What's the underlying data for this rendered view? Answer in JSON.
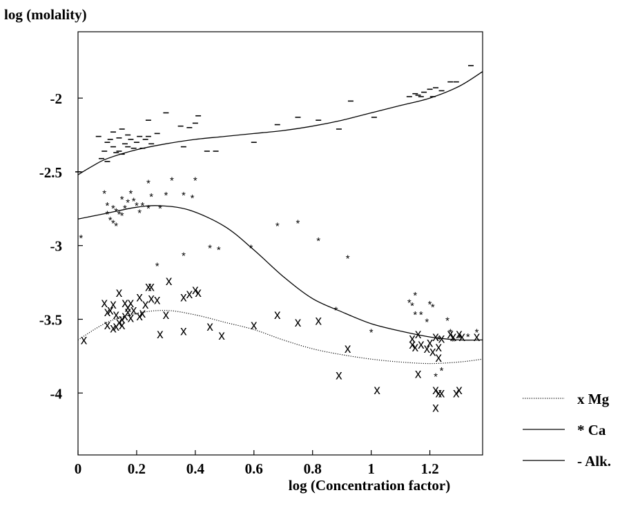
{
  "chart_data": {
    "type": "scatter",
    "ylabel": "log (molality)",
    "xlabel": "log (Concentration factor)",
    "xlim": [
      0,
      1.38
    ],
    "ylim": [
      -4.42,
      -1.55
    ],
    "xticks": [
      "0",
      "0.2",
      "0.4",
      "0.6",
      "0.8",
      "1",
      "1.2"
    ],
    "xtick_values": [
      0,
      0.2,
      0.4,
      0.6,
      0.8,
      1.0,
      1.2
    ],
    "yticks": [
      "-2",
      "-2.5",
      "-3",
      "-3.5",
      "-4"
    ],
    "ytick_values": [
      -2,
      -2.5,
      -3,
      -3.5,
      -4
    ],
    "grid": false,
    "legend_position": "bottom-right, outside plot",
    "series": [
      {
        "name": "x Mg",
        "marker": "x",
        "line_style": "dotted",
        "curve": [
          [
            0,
            -3.64
          ],
          [
            0.1,
            -3.52
          ],
          [
            0.2,
            -3.46
          ],
          [
            0.3,
            -3.44
          ],
          [
            0.4,
            -3.47
          ],
          [
            0.5,
            -3.52
          ],
          [
            0.6,
            -3.57
          ],
          [
            0.7,
            -3.64
          ],
          [
            0.8,
            -3.7
          ],
          [
            0.9,
            -3.74
          ],
          [
            1.0,
            -3.77
          ],
          [
            1.1,
            -3.79
          ],
          [
            1.2,
            -3.8
          ],
          [
            1.3,
            -3.79
          ],
          [
            1.38,
            -3.77
          ]
        ],
        "points": [
          [
            0.02,
            -3.64
          ],
          [
            0.09,
            -3.39
          ],
          [
            0.1,
            -3.45
          ],
          [
            0.1,
            -3.54
          ],
          [
            0.11,
            -3.44
          ],
          [
            0.12,
            -3.56
          ],
          [
            0.12,
            -3.4
          ],
          [
            0.13,
            -3.55
          ],
          [
            0.13,
            -3.47
          ],
          [
            0.14,
            -3.32
          ],
          [
            0.14,
            -3.52
          ],
          [
            0.15,
            -3.5
          ],
          [
            0.15,
            -3.54
          ],
          [
            0.16,
            -3.39
          ],
          [
            0.16,
            -3.48
          ],
          [
            0.17,
            -3.45
          ],
          [
            0.17,
            -3.42
          ],
          [
            0.18,
            -3.39
          ],
          [
            0.18,
            -3.49
          ],
          [
            0.19,
            -3.44
          ],
          [
            0.21,
            -3.35
          ],
          [
            0.21,
            -3.48
          ],
          [
            0.22,
            -3.46
          ],
          [
            0.23,
            -3.4
          ],
          [
            0.24,
            -3.28
          ],
          [
            0.25,
            -3.28
          ],
          [
            0.25,
            -3.36
          ],
          [
            0.27,
            -3.37
          ],
          [
            0.28,
            -3.6
          ],
          [
            0.3,
            -3.47
          ],
          [
            0.31,
            -3.24
          ],
          [
            0.36,
            -3.58
          ],
          [
            0.36,
            -3.35
          ],
          [
            0.38,
            -3.33
          ],
          [
            0.4,
            -3.3
          ],
          [
            0.41,
            -3.32
          ],
          [
            0.45,
            -3.55
          ],
          [
            0.49,
            -3.61
          ],
          [
            0.6,
            -3.54
          ],
          [
            0.68,
            -3.47
          ],
          [
            0.75,
            -3.52
          ],
          [
            0.82,
            -3.51
          ],
          [
            0.89,
            -3.88
          ],
          [
            0.92,
            -3.7
          ],
          [
            1.02,
            -3.98
          ],
          [
            1.14,
            -3.63
          ],
          [
            1.14,
            -3.67
          ],
          [
            1.15,
            -3.69
          ],
          [
            1.16,
            -3.6
          ],
          [
            1.16,
            -3.87
          ],
          [
            1.17,
            -3.67
          ],
          [
            1.19,
            -3.7
          ],
          [
            1.2,
            -3.66
          ],
          [
            1.21,
            -3.72
          ],
          [
            1.22,
            -3.62
          ],
          [
            1.22,
            -4.1
          ],
          [
            1.22,
            -3.98
          ],
          [
            1.23,
            -4.0
          ],
          [
            1.23,
            -3.76
          ],
          [
            1.23,
            -3.69
          ],
          [
            1.24,
            -3.63
          ],
          [
            1.24,
            -4.0
          ],
          [
            1.27,
            -3.6
          ],
          [
            1.28,
            -3.62
          ],
          [
            1.29,
            -4.0
          ],
          [
            1.3,
            -3.98
          ],
          [
            1.3,
            -3.6
          ],
          [
            1.31,
            -3.62
          ],
          [
            1.36,
            -3.62
          ]
        ]
      },
      {
        "name": "* Ca",
        "marker": "*",
        "line_style": "solid",
        "curve": [
          [
            0,
            -2.82
          ],
          [
            0.1,
            -2.78
          ],
          [
            0.2,
            -2.74
          ],
          [
            0.28,
            -2.73
          ],
          [
            0.38,
            -2.76
          ],
          [
            0.5,
            -2.87
          ],
          [
            0.6,
            -3.03
          ],
          [
            0.7,
            -3.21
          ],
          [
            0.8,
            -3.36
          ],
          [
            0.9,
            -3.45
          ],
          [
            1.0,
            -3.53
          ],
          [
            1.1,
            -3.58
          ],
          [
            1.2,
            -3.62
          ],
          [
            1.3,
            -3.64
          ],
          [
            1.38,
            -3.64
          ]
        ],
        "points": [
          [
            0.01,
            -2.93
          ],
          [
            0.09,
            -2.63
          ],
          [
            0.1,
            -2.71
          ],
          [
            0.1,
            -2.77
          ],
          [
            0.11,
            -2.81
          ],
          [
            0.12,
            -2.73
          ],
          [
            0.12,
            -2.83
          ],
          [
            0.13,
            -2.85
          ],
          [
            0.13,
            -2.75
          ],
          [
            0.14,
            -2.77
          ],
          [
            0.15,
            -2.78
          ],
          [
            0.15,
            -2.67
          ],
          [
            0.16,
            -2.73
          ],
          [
            0.17,
            -2.69
          ],
          [
            0.18,
            -2.63
          ],
          [
            0.19,
            -2.68
          ],
          [
            0.2,
            -2.71
          ],
          [
            0.21,
            -2.76
          ],
          [
            0.22,
            -2.71
          ],
          [
            0.24,
            -2.56
          ],
          [
            0.24,
            -2.73
          ],
          [
            0.25,
            -2.65
          ],
          [
            0.27,
            -3.12
          ],
          [
            0.28,
            -2.73
          ],
          [
            0.3,
            -2.64
          ],
          [
            0.32,
            -2.54
          ],
          [
            0.36,
            -2.64
          ],
          [
            0.36,
            -3.05
          ],
          [
            0.39,
            -2.66
          ],
          [
            0.4,
            -2.54
          ],
          [
            0.45,
            -3.0
          ],
          [
            0.48,
            -3.01
          ],
          [
            0.59,
            -3.0
          ],
          [
            0.68,
            -2.85
          ],
          [
            0.75,
            -2.83
          ],
          [
            0.82,
            -2.95
          ],
          [
            0.88,
            -3.42
          ],
          [
            0.92,
            -3.07
          ],
          [
            1.0,
            -3.57
          ],
          [
            1.13,
            -3.37
          ],
          [
            1.14,
            -3.39
          ],
          [
            1.15,
            -3.32
          ],
          [
            1.15,
            -3.45
          ],
          [
            1.17,
            -3.45
          ],
          [
            1.19,
            -3.5
          ],
          [
            1.2,
            -3.38
          ],
          [
            1.21,
            -3.4
          ],
          [
            1.22,
            -3.87
          ],
          [
            1.23,
            -3.62
          ],
          [
            1.24,
            -3.83
          ],
          [
            1.26,
            -3.49
          ],
          [
            1.27,
            -3.57
          ],
          [
            1.28,
            -3.63
          ],
          [
            1.3,
            -3.61
          ],
          [
            1.33,
            -3.6
          ],
          [
            1.36,
            -3.57
          ]
        ]
      },
      {
        "name": "- Alk.",
        "marker": "-",
        "line_style": "solid",
        "curve": [
          [
            0,
            -2.52
          ],
          [
            0.05,
            -2.46
          ],
          [
            0.1,
            -2.41
          ],
          [
            0.2,
            -2.35
          ],
          [
            0.3,
            -2.31
          ],
          [
            0.4,
            -2.28
          ],
          [
            0.5,
            -2.26
          ],
          [
            0.6,
            -2.24
          ],
          [
            0.7,
            -2.22
          ],
          [
            0.8,
            -2.19
          ],
          [
            0.9,
            -2.15
          ],
          [
            1.0,
            -2.1
          ],
          [
            1.1,
            -2.05
          ],
          [
            1.2,
            -2.0
          ],
          [
            1.3,
            -1.92
          ],
          [
            1.38,
            -1.82
          ]
        ],
        "points": [
          [
            0.0,
            -2.5
          ],
          [
            0.07,
            -2.26
          ],
          [
            0.08,
            -2.41
          ],
          [
            0.09,
            -2.36
          ],
          [
            0.1,
            -2.3
          ],
          [
            0.1,
            -2.43
          ],
          [
            0.11,
            -2.28
          ],
          [
            0.12,
            -2.23
          ],
          [
            0.12,
            -2.33
          ],
          [
            0.13,
            -2.37
          ],
          [
            0.14,
            -2.27
          ],
          [
            0.14,
            -2.36
          ],
          [
            0.15,
            -2.21
          ],
          [
            0.15,
            -2.38
          ],
          [
            0.16,
            -2.31
          ],
          [
            0.17,
            -2.25
          ],
          [
            0.17,
            -2.33
          ],
          [
            0.18,
            -2.28
          ],
          [
            0.19,
            -2.34
          ],
          [
            0.2,
            -2.3
          ],
          [
            0.21,
            -2.26
          ],
          [
            0.22,
            -2.34
          ],
          [
            0.23,
            -2.28
          ],
          [
            0.24,
            -2.26
          ],
          [
            0.24,
            -2.15
          ],
          [
            0.25,
            -2.31
          ],
          [
            0.27,
            -2.24
          ],
          [
            0.3,
            -2.1
          ],
          [
            0.35,
            -2.19
          ],
          [
            0.36,
            -2.33
          ],
          [
            0.38,
            -2.2
          ],
          [
            0.4,
            -2.17
          ],
          [
            0.41,
            -2.12
          ],
          [
            0.44,
            -2.36
          ],
          [
            0.47,
            -2.36
          ],
          [
            0.6,
            -2.3
          ],
          [
            0.68,
            -2.18
          ],
          [
            0.75,
            -2.13
          ],
          [
            0.82,
            -2.15
          ],
          [
            0.89,
            -2.21
          ],
          [
            0.93,
            -2.02
          ],
          [
            1.01,
            -2.13
          ],
          [
            1.13,
            -1.99
          ],
          [
            1.15,
            -1.97
          ],
          [
            1.16,
            -1.98
          ],
          [
            1.17,
            -1.99
          ],
          [
            1.18,
            -1.96
          ],
          [
            1.2,
            -1.94
          ],
          [
            1.21,
            -1.99
          ],
          [
            1.22,
            -1.93
          ],
          [
            1.24,
            -1.95
          ],
          [
            1.27,
            -1.89
          ],
          [
            1.29,
            -1.89
          ],
          [
            1.34,
            -1.78
          ]
        ]
      }
    ]
  }
}
